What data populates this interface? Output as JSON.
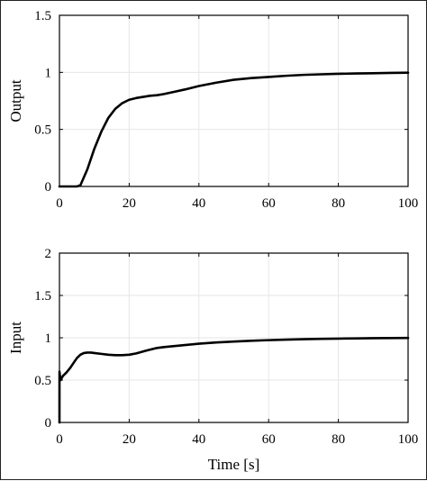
{
  "chart_data": [
    {
      "type": "line",
      "title": "",
      "xlabel": "",
      "ylabel": "Output",
      "xlim": [
        0,
        100
      ],
      "ylim": [
        0,
        1.5
      ],
      "xticks": [
        "0",
        "20",
        "40",
        "60",
        "80",
        "100"
      ],
      "yticks": [
        "0",
        "0.5",
        "1",
        "1.5"
      ],
      "grid": true,
      "series": [
        {
          "x": [
            0,
            5,
            6,
            8,
            10,
            12,
            14,
            16,
            18,
            20,
            22,
            24,
            26,
            28,
            30,
            33,
            36,
            40,
            45,
            50,
            55,
            60,
            65,
            70,
            75,
            80,
            85,
            90,
            95,
            100
          ],
          "y": [
            0,
            0,
            0.01,
            0.15,
            0.33,
            0.48,
            0.6,
            0.68,
            0.73,
            0.76,
            0.775,
            0.785,
            0.795,
            0.8,
            0.81,
            0.83,
            0.85,
            0.88,
            0.91,
            0.935,
            0.95,
            0.96,
            0.97,
            0.978,
            0.983,
            0.987,
            0.99,
            0.992,
            0.995,
            0.997
          ]
        }
      ]
    },
    {
      "type": "line",
      "title": "",
      "xlabel": "Time [s]",
      "ylabel": "Input",
      "xlim": [
        0,
        100
      ],
      "ylim": [
        0,
        2
      ],
      "xticks": [
        "0",
        "20",
        "40",
        "60",
        "80",
        "100"
      ],
      "yticks": [
        "0",
        "0.5",
        "1",
        "1.5",
        "2"
      ],
      "grid": true,
      "series": [
        {
          "x": [
            0,
            0.01,
            0.3,
            1,
            2,
            3,
            4,
            5,
            6,
            7,
            8,
            9,
            10,
            12,
            14,
            16,
            18,
            20,
            22,
            25,
            28,
            30,
            35,
            40,
            45,
            50,
            55,
            60,
            65,
            70,
            75,
            80,
            85,
            90,
            95,
            100
          ],
          "y": [
            0,
            0.6,
            0.5,
            0.55,
            0.59,
            0.64,
            0.7,
            0.76,
            0.8,
            0.82,
            0.825,
            0.825,
            0.82,
            0.81,
            0.8,
            0.795,
            0.795,
            0.8,
            0.815,
            0.85,
            0.88,
            0.89,
            0.91,
            0.93,
            0.945,
            0.955,
            0.965,
            0.972,
            0.978,
            0.983,
            0.987,
            0.99,
            0.993,
            0.995,
            0.997,
            0.998
          ]
        }
      ]
    }
  ]
}
